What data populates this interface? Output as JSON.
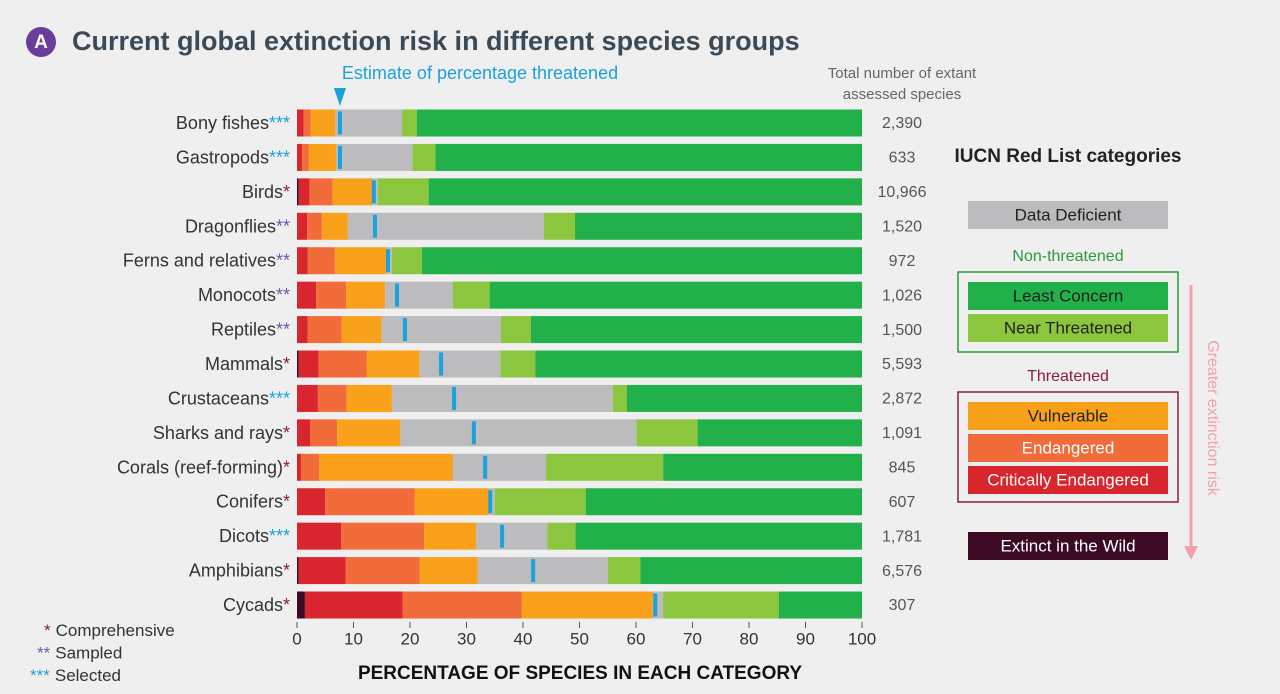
{
  "chart_data": {
    "type": "stacked-bar-horizontal",
    "badge": "A",
    "title": "Current global extinction risk in different species groups",
    "annotation": "Estimate of percentage threatened",
    "totals_header": [
      "Total number of extant",
      "assessed species"
    ],
    "legend_title": "IUCN Red List categories",
    "legend_groups": {
      "non_threatened": "Non-threatened",
      "threatened": "Threatened"
    },
    "risk_arrow": "Greater extinction risk",
    "xlabel": "PERCENTAGE OF SPECIES IN EACH CATEGORY",
    "xlim": [
      0,
      100
    ],
    "xticks": [
      0,
      10,
      20,
      30,
      40,
      50,
      60,
      70,
      80,
      90,
      100
    ],
    "categories": [
      "Bony fishes",
      "Gastropods",
      "Birds",
      "Dragonflies",
      "Ferns and relatives",
      "Monocots",
      "Reptiles",
      "Mammals",
      "Crustaceans",
      "Sharks and rays",
      "Corals (reef-forming)",
      "Conifers",
      "Dicots",
      "Amphibians",
      "Cycads"
    ],
    "assessment": [
      "***",
      "***",
      "*",
      "**",
      "**",
      "**",
      "**",
      "*",
      "***",
      "*",
      "*",
      "*",
      "***",
      "*",
      "*"
    ],
    "assessment_colors": {
      "*": "#8b1e3f",
      "**": "#6b5bb0",
      "***": "#1ba1dc"
    },
    "footnotes": [
      {
        "symbol": "*",
        "label": "Comprehensive"
      },
      {
        "symbol": "**",
        "label": "Sampled"
      },
      {
        "symbol": "***",
        "label": "Selected"
      }
    ],
    "series": [
      {
        "name": "Extinct in the Wild",
        "color": "#3d0a24",
        "values": [
          0,
          0,
          0.3,
          0,
          0,
          0,
          0,
          0.3,
          0,
          0,
          0,
          0,
          0,
          0.3,
          1.4
        ]
      },
      {
        "name": "Critically Endangered",
        "color": "#d9262e",
        "values": [
          1.2,
          0.9,
          1.9,
          1.8,
          1.9,
          3.4,
          1.9,
          3.5,
          3.7,
          2.3,
          0.7,
          5.0,
          7.8,
          8.3,
          17.3
        ]
      },
      {
        "name": "Endangered",
        "color": "#f26b3a",
        "values": [
          1.2,
          1.2,
          4.1,
          2.6,
          4.8,
          5.3,
          6.0,
          8.5,
          5.1,
          4.8,
          3.2,
          15.8,
          14.7,
          13.1,
          21.1
        ]
      },
      {
        "name": "Vulnerable",
        "color": "#f9a11b",
        "values": [
          4.4,
          4.8,
          7.1,
          4.6,
          9.2,
          6.9,
          7.1,
          9.4,
          8.0,
          11.2,
          23.7,
          13.1,
          9.2,
          10.3,
          23.2
        ]
      },
      {
        "name": "Data Deficient",
        "color": "#bcbcbe",
        "values": [
          11.8,
          13.5,
          0.9,
          34.7,
          0.9,
          12.0,
          21.1,
          14.3,
          39.1,
          41.8,
          16.5,
          1.1,
          12.6,
          23.0,
          1.8
        ]
      },
      {
        "name": "Near Threatened",
        "color": "#8cc63f",
        "values": [
          2.6,
          4.1,
          9.0,
          5.5,
          5.3,
          6.5,
          5.3,
          6.2,
          2.5,
          10.8,
          20.7,
          16.1,
          5.0,
          5.8,
          20.5
        ]
      },
      {
        "name": "Least Concern",
        "color": "#22b04b",
        "values": [
          78.8,
          75.5,
          76.7,
          50.8,
          77.9,
          65.9,
          58.6,
          57.8,
          41.6,
          29.1,
          35.2,
          48.9,
          50.7,
          39.2,
          14.7
        ]
      }
    ],
    "threatened_estimate": {
      "color": "#1ba1dc",
      "values": [
        7.6,
        7.6,
        13.6,
        13.8,
        16.1,
        17.7,
        19.1,
        25.5,
        27.8,
        31.3,
        33.3,
        34.2,
        36.3,
        41.8,
        63.4
      ]
    },
    "totals": {
      "values": [
        2390,
        633,
        10966,
        1520,
        972,
        1026,
        1500,
        5593,
        2872,
        1091,
        845,
        607,
        1781,
        6576,
        307
      ],
      "value_labels": [
        "2,390",
        "633",
        "10,966",
        "1,520",
        "972",
        "1,026",
        "1,500",
        "5,593",
        "2,872",
        "1,091",
        "845",
        "607",
        "1,781",
        "6,576",
        "307"
      ]
    }
  }
}
